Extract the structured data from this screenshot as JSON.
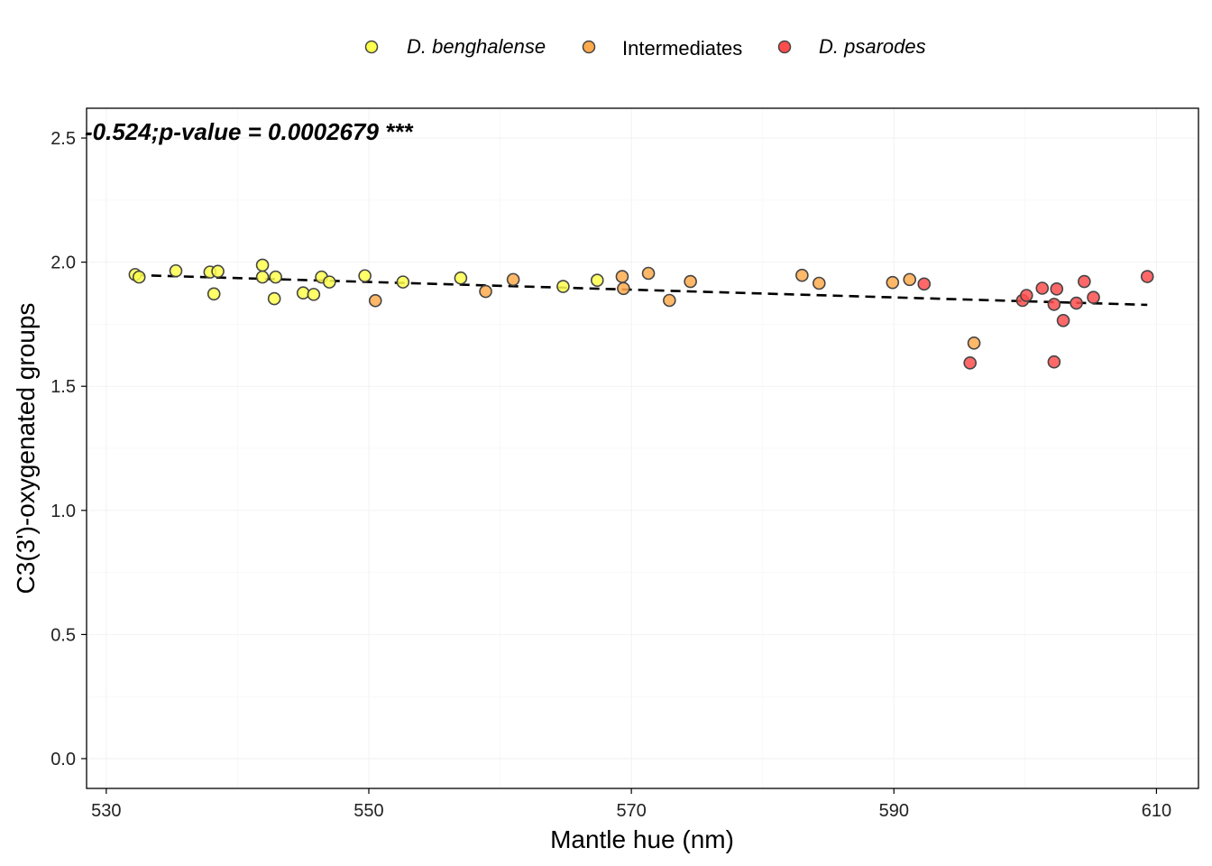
{
  "chart_data": {
    "type": "scatter",
    "title": "",
    "xlabel": "Mantle hue (nm)",
    "ylabel": "C3(3')-oxygenated groups",
    "xlim": [
      528.5,
      613.2
    ],
    "ylim": [
      -0.12,
      2.62
    ],
    "x_ticks": [
      530,
      550,
      570,
      590,
      610
    ],
    "x_tick_labels": [
      "530",
      "550",
      "570",
      "590",
      "610"
    ],
    "y_ticks": [
      0.0,
      0.5,
      1.0,
      1.5,
      2.0,
      2.5
    ],
    "y_tick_labels": [
      "0.0",
      "0.5",
      "1.0",
      "1.5",
      "2.0",
      "2.5"
    ],
    "grid": true,
    "legend_position": "top",
    "annotation": "-0.524;p-value = 0.0002679 ***",
    "series": [
      {
        "name": "D. benghalense",
        "color": "#FFFF4D",
        "points": [
          {
            "x": 532.2,
            "y": 1.95
          },
          {
            "x": 532.5,
            "y": 1.94
          },
          {
            "x": 535.3,
            "y": 1.965
          },
          {
            "x": 537.9,
            "y": 1.96
          },
          {
            "x": 538.5,
            "y": 1.963
          },
          {
            "x": 538.2,
            "y": 1.872
          },
          {
            "x": 541.9,
            "y": 1.988
          },
          {
            "x": 541.9,
            "y": 1.94
          },
          {
            "x": 542.9,
            "y": 1.94
          },
          {
            "x": 542.8,
            "y": 1.853
          },
          {
            "x": 545.0,
            "y": 1.876
          },
          {
            "x": 545.8,
            "y": 1.87
          },
          {
            "x": 546.4,
            "y": 1.94
          },
          {
            "x": 547.0,
            "y": 1.92
          },
          {
            "x": 549.7,
            "y": 1.945
          },
          {
            "x": 552.6,
            "y": 1.92
          },
          {
            "x": 557.0,
            "y": 1.936
          },
          {
            "x": 564.8,
            "y": 1.902
          },
          {
            "x": 567.4,
            "y": 1.927
          }
        ]
      },
      {
        "name": "Intermediates",
        "color": "#FFAA4D",
        "points": [
          {
            "x": 550.5,
            "y": 1.845
          },
          {
            "x": 558.9,
            "y": 1.882
          },
          {
            "x": 561.0,
            "y": 1.93
          },
          {
            "x": 569.3,
            "y": 1.942
          },
          {
            "x": 569.4,
            "y": 1.894
          },
          {
            "x": 571.3,
            "y": 1.955
          },
          {
            "x": 572.9,
            "y": 1.846
          },
          {
            "x": 574.5,
            "y": 1.922
          },
          {
            "x": 583.0,
            "y": 1.947
          },
          {
            "x": 584.3,
            "y": 1.915
          },
          {
            "x": 589.9,
            "y": 1.918
          },
          {
            "x": 591.2,
            "y": 1.93
          },
          {
            "x": 596.1,
            "y": 1.674
          }
        ]
      },
      {
        "name": "D. psarodes",
        "color": "#FF4D4D",
        "points": [
          {
            "x": 592.3,
            "y": 1.912
          },
          {
            "x": 595.8,
            "y": 1.594
          },
          {
            "x": 599.8,
            "y": 1.846
          },
          {
            "x": 600.1,
            "y": 1.866
          },
          {
            "x": 601.3,
            "y": 1.895
          },
          {
            "x": 602.2,
            "y": 1.598
          },
          {
            "x": 602.2,
            "y": 1.83
          },
          {
            "x": 602.4,
            "y": 1.892
          },
          {
            "x": 602.9,
            "y": 1.765
          },
          {
            "x": 603.9,
            "y": 1.835
          },
          {
            "x": 604.5,
            "y": 1.922
          },
          {
            "x": 605.2,
            "y": 1.858
          },
          {
            "x": 609.3,
            "y": 1.942
          }
        ]
      }
    ],
    "trend_line": {
      "style": "dashed",
      "x": [
        532.2,
        609.3
      ],
      "y": [
        1.948,
        1.828
      ]
    }
  }
}
